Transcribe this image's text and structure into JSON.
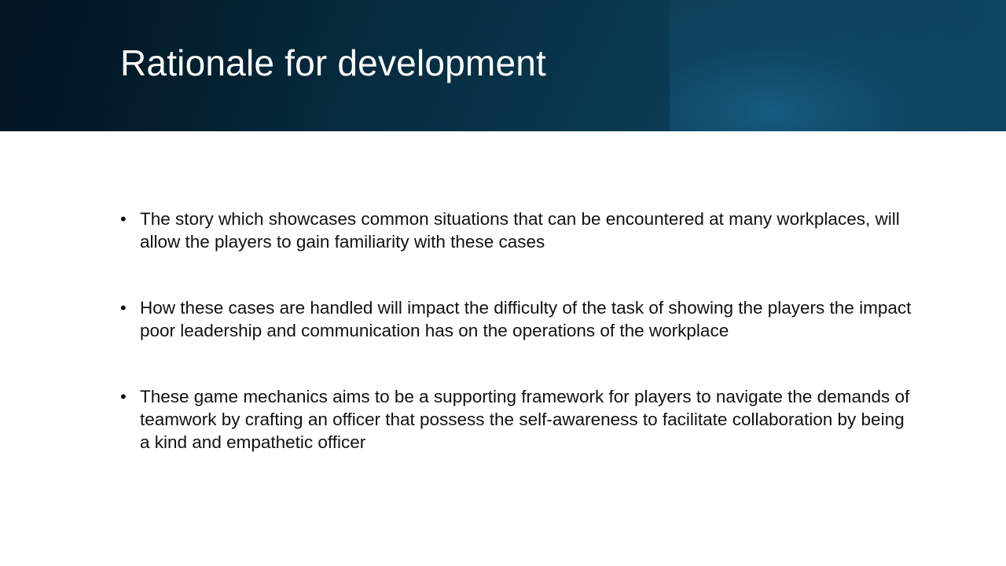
{
  "slide": {
    "title": "Rationale for development",
    "bullet_glyph": "•",
    "bullets": [
      "The story which showcases common situations that can be encountered at many workplaces, will allow the players to gain familiarity with these cases",
      "How these cases are handled will impact the difficulty of the task of showing the players the impact poor leadership and communication has on the operations of the workplace",
      "These game mechanics aims to be a supporting framework for players to navigate the demands of teamwork by crafting an officer that possess the self-awareness to facilitate collaboration by being a kind and empathetic officer"
    ]
  },
  "colors": {
    "header_dark": "#031a27",
    "header_light": "#0d4a68",
    "title_text": "#ffffff",
    "body_text": "#111111",
    "background": "#ffffff"
  }
}
